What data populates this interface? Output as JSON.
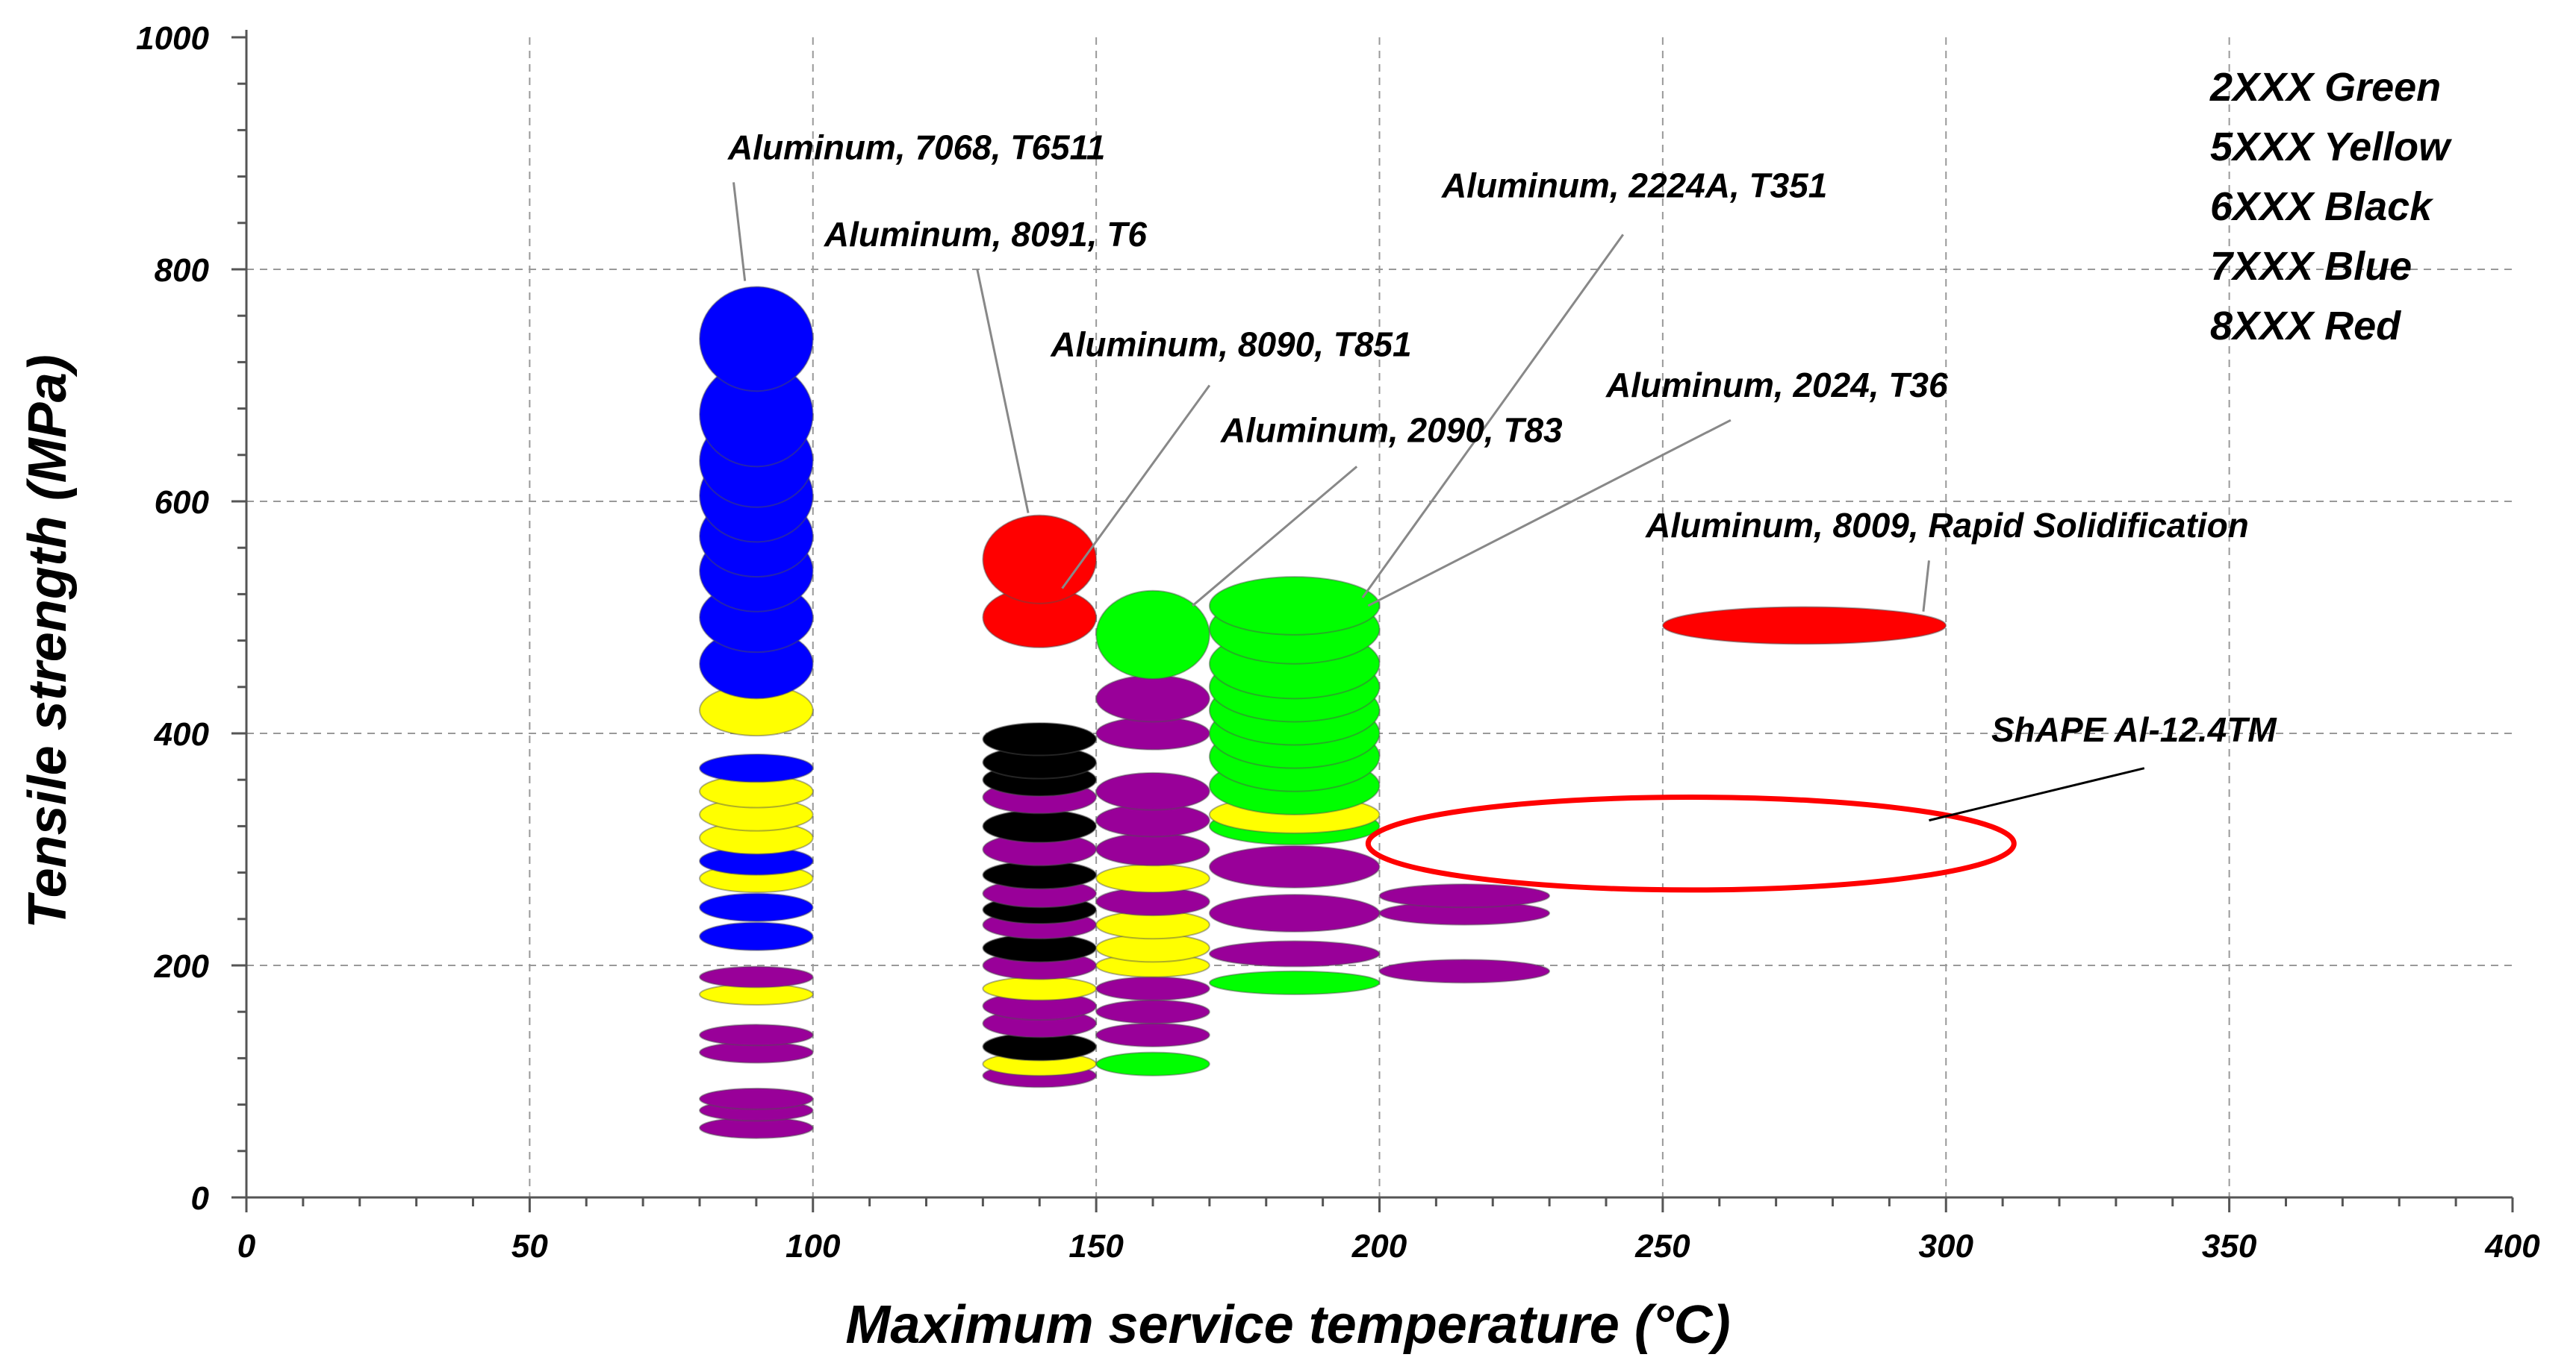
{
  "chart_data": {
    "type": "scatter",
    "title": "",
    "xlabel": "Maximum service temperature (°C)",
    "ylabel": "Tensile strength (MPa)",
    "xlim": [
      0,
      400
    ],
    "ylim": [
      0,
      1000
    ],
    "x_ticks": [
      "0",
      "50",
      "100",
      "150",
      "200",
      "250",
      "300",
      "350",
      "400"
    ],
    "y_ticks": [
      "0",
      "200",
      "400",
      "600",
      "800",
      "1000"
    ],
    "grid": true,
    "legend": {
      "placement": "top-right",
      "entries": [
        "2XXX Green",
        "5XXX Yellow",
        "6XXX Black",
        "7XXX Blue",
        "8XXX Red"
      ]
    },
    "colors": {
      "green": "#00ff00",
      "yellow": "#ffff00",
      "black": "#000000",
      "blue": "#0000ff",
      "red": "#ff0000",
      "purple": "#990099",
      "outline_red": "#ff0000"
    },
    "bubbles": [
      {
        "x": 90,
        "y": 60,
        "dx": 10,
        "dy": 9,
        "color": "purple"
      },
      {
        "x": 90,
        "y": 75,
        "dx": 10,
        "dy": 9,
        "color": "purple"
      },
      {
        "x": 90,
        "y": 85,
        "dx": 10,
        "dy": 9,
        "color": "purple"
      },
      {
        "x": 90,
        "y": 125,
        "dx": 10,
        "dy": 9,
        "color": "purple"
      },
      {
        "x": 90,
        "y": 140,
        "dx": 10,
        "dy": 9,
        "color": "purple"
      },
      {
        "x": 90,
        "y": 175,
        "dx": 10,
        "dy": 9,
        "color": "yellow"
      },
      {
        "x": 90,
        "y": 190,
        "dx": 10,
        "dy": 9,
        "color": "purple"
      },
      {
        "x": 90,
        "y": 225,
        "dx": 10,
        "dy": 12,
        "color": "blue"
      },
      {
        "x": 90,
        "y": 250,
        "dx": 10,
        "dy": 12,
        "color": "blue"
      },
      {
        "x": 90,
        "y": 275,
        "dx": 10,
        "dy": 12,
        "color": "yellow"
      },
      {
        "x": 90,
        "y": 290,
        "dx": 10,
        "dy": 12,
        "color": "blue"
      },
      {
        "x": 90,
        "y": 310,
        "dx": 10,
        "dy": 14,
        "color": "yellow"
      },
      {
        "x": 90,
        "y": 330,
        "dx": 10,
        "dy": 14,
        "color": "yellow"
      },
      {
        "x": 90,
        "y": 350,
        "dx": 10,
        "dy": 14,
        "color": "yellow"
      },
      {
        "x": 90,
        "y": 370,
        "dx": 10,
        "dy": 12,
        "color": "blue"
      },
      {
        "x": 90,
        "y": 420,
        "dx": 10,
        "dy": 22,
        "color": "yellow"
      },
      {
        "x": 90,
        "y": 460,
        "dx": 10,
        "dy": 30,
        "color": "blue"
      },
      {
        "x": 90,
        "y": 500,
        "dx": 10,
        "dy": 30,
        "color": "blue"
      },
      {
        "x": 90,
        "y": 540,
        "dx": 10,
        "dy": 35,
        "color": "blue"
      },
      {
        "x": 90,
        "y": 570,
        "dx": 10,
        "dy": 35,
        "color": "blue"
      },
      {
        "x": 90,
        "y": 605,
        "dx": 10,
        "dy": 40,
        "color": "blue"
      },
      {
        "x": 90,
        "y": 635,
        "dx": 10,
        "dy": 40,
        "color": "blue"
      },
      {
        "x": 90,
        "y": 675,
        "dx": 10,
        "dy": 45,
        "color": "blue"
      },
      {
        "x": 90,
        "y": 740,
        "dx": 10,
        "dy": 45,
        "color": "blue"
      },
      {
        "x": 140,
        "y": 105,
        "dx": 10,
        "dy": 10,
        "color": "purple"
      },
      {
        "x": 140,
        "y": 115,
        "dx": 10,
        "dy": 10,
        "color": "yellow"
      },
      {
        "x": 140,
        "y": 130,
        "dx": 10,
        "dy": 12,
        "color": "black"
      },
      {
        "x": 140,
        "y": 150,
        "dx": 10,
        "dy": 12,
        "color": "purple"
      },
      {
        "x": 140,
        "y": 165,
        "dx": 10,
        "dy": 12,
        "color": "purple"
      },
      {
        "x": 140,
        "y": 180,
        "dx": 10,
        "dy": 10,
        "color": "yellow"
      },
      {
        "x": 140,
        "y": 200,
        "dx": 10,
        "dy": 12,
        "color": "purple"
      },
      {
        "x": 140,
        "y": 215,
        "dx": 10,
        "dy": 12,
        "color": "black"
      },
      {
        "x": 140,
        "y": 235,
        "dx": 10,
        "dy": 12,
        "color": "purple"
      },
      {
        "x": 140,
        "y": 248,
        "dx": 10,
        "dy": 12,
        "color": "black"
      },
      {
        "x": 140,
        "y": 262,
        "dx": 10,
        "dy": 12,
        "color": "purple"
      },
      {
        "x": 140,
        "y": 278,
        "dx": 10,
        "dy": 12,
        "color": "black"
      },
      {
        "x": 140,
        "y": 300,
        "dx": 10,
        "dy": 14,
        "color": "purple"
      },
      {
        "x": 140,
        "y": 320,
        "dx": 10,
        "dy": 14,
        "color": "black"
      },
      {
        "x": 140,
        "y": 345,
        "dx": 10,
        "dy": 14,
        "color": "purple"
      },
      {
        "x": 140,
        "y": 360,
        "dx": 10,
        "dy": 14,
        "color": "black"
      },
      {
        "x": 140,
        "y": 375,
        "dx": 10,
        "dy": 14,
        "color": "black"
      },
      {
        "x": 140,
        "y": 395,
        "dx": 10,
        "dy": 14,
        "color": "black"
      },
      {
        "x": 140,
        "y": 500,
        "dx": 10,
        "dy": 26,
        "color": "red"
      },
      {
        "x": 140,
        "y": 550,
        "dx": 10,
        "dy": 38,
        "color": "red"
      },
      {
        "x": 160,
        "y": 115,
        "dx": 10,
        "dy": 10,
        "color": "green"
      },
      {
        "x": 160,
        "y": 140,
        "dx": 10,
        "dy": 10,
        "color": "purple"
      },
      {
        "x": 160,
        "y": 160,
        "dx": 10,
        "dy": 10,
        "color": "purple"
      },
      {
        "x": 160,
        "y": 180,
        "dx": 10,
        "dy": 10,
        "color": "purple"
      },
      {
        "x": 160,
        "y": 200,
        "dx": 10,
        "dy": 10,
        "color": "yellow"
      },
      {
        "x": 160,
        "y": 215,
        "dx": 10,
        "dy": 12,
        "color": "yellow"
      },
      {
        "x": 160,
        "y": 235,
        "dx": 10,
        "dy": 12,
        "color": "yellow"
      },
      {
        "x": 160,
        "y": 255,
        "dx": 10,
        "dy": 12,
        "color": "purple"
      },
      {
        "x": 160,
        "y": 275,
        "dx": 10,
        "dy": 12,
        "color": "yellow"
      },
      {
        "x": 160,
        "y": 300,
        "dx": 10,
        "dy": 14,
        "color": "purple"
      },
      {
        "x": 160,
        "y": 325,
        "dx": 10,
        "dy": 14,
        "color": "purple"
      },
      {
        "x": 160,
        "y": 350,
        "dx": 10,
        "dy": 16,
        "color": "purple"
      },
      {
        "x": 160,
        "y": 400,
        "dx": 10,
        "dy": 14,
        "color": "purple"
      },
      {
        "x": 160,
        "y": 430,
        "dx": 10,
        "dy": 20,
        "color": "purple"
      },
      {
        "x": 160,
        "y": 485,
        "dx": 10,
        "dy": 38,
        "color": "green"
      },
      {
        "x": 185,
        "y": 185,
        "dx": 15,
        "dy": 10,
        "color": "green"
      },
      {
        "x": 185,
        "y": 210,
        "dx": 15,
        "dy": 11,
        "color": "purple"
      },
      {
        "x": 185,
        "y": 245,
        "dx": 15,
        "dy": 16,
        "color": "purple"
      },
      {
        "x": 185,
        "y": 285,
        "dx": 15,
        "dy": 18,
        "color": "purple"
      },
      {
        "x": 185,
        "y": 320,
        "dx": 15,
        "dy": 16,
        "color": "green"
      },
      {
        "x": 185,
        "y": 330,
        "dx": 15,
        "dy": 16,
        "color": "yellow"
      },
      {
        "x": 185,
        "y": 355,
        "dx": 15,
        "dy": 25,
        "color": "green"
      },
      {
        "x": 185,
        "y": 380,
        "dx": 15,
        "dy": 30,
        "color": "green"
      },
      {
        "x": 185,
        "y": 400,
        "dx": 15,
        "dy": 30,
        "color": "green"
      },
      {
        "x": 185,
        "y": 420,
        "dx": 15,
        "dy": 30,
        "color": "green"
      },
      {
        "x": 185,
        "y": 440,
        "dx": 15,
        "dy": 30,
        "color": "green"
      },
      {
        "x": 185,
        "y": 460,
        "dx": 15,
        "dy": 30,
        "color": "green"
      },
      {
        "x": 185,
        "y": 490,
        "dx": 15,
        "dy": 30,
        "color": "green"
      },
      {
        "x": 185,
        "y": 510,
        "dx": 15,
        "dy": 25,
        "color": "green"
      },
      {
        "x": 215,
        "y": 195,
        "dx": 15,
        "dy": 10,
        "color": "purple"
      },
      {
        "x": 215,
        "y": 245,
        "dx": 15,
        "dy": 10,
        "color": "purple"
      },
      {
        "x": 215,
        "y": 260,
        "dx": 15,
        "dy": 10,
        "color": "purple"
      },
      {
        "x": 275,
        "y": 493,
        "dx": 25,
        "dy": 16,
        "color": "red"
      }
    ],
    "outline_ellipses": [
      {
        "label": "ShAPE Al-12.4TM",
        "x": 255,
        "y": 305,
        "dx": 57,
        "dy": 40,
        "color": "outline_red"
      }
    ],
    "annotations": [
      {
        "text": "Aluminum, 7068, T6511",
        "text_x": 85,
        "text_y": 895,
        "line_x1": 86,
        "line_y1": 875,
        "line_x2": 88,
        "line_y2": 790
      },
      {
        "text": "Aluminum, 8091, T6",
        "text_x": 102,
        "text_y": 820,
        "line_x1": 129,
        "line_y1": 800,
        "line_x2": 138,
        "line_y2": 590
      },
      {
        "text": "Aluminum, 2224A, T351",
        "text_x": 211,
        "text_y": 862,
        "line_x1": 243,
        "line_y1": 830,
        "line_x2": 197,
        "line_y2": 517
      },
      {
        "text": "Aluminum, 8090, T851",
        "text_x": 142,
        "text_y": 725,
        "line_x1": 170,
        "line_y1": 700,
        "line_x2": 144,
        "line_y2": 525
      },
      {
        "text": "Aluminum, 2024, T36",
        "text_x": 240,
        "text_y": 690,
        "line_x1": 262,
        "line_y1": 670,
        "line_x2": 198,
        "line_y2": 510
      },
      {
        "text": "Aluminum, 2090, T83",
        "text_x": 172,
        "text_y": 651,
        "line_x1": 196,
        "line_y1": 630,
        "line_x2": 167,
        "line_y2": 510
      },
      {
        "text": "Aluminum, 8009, Rapid Solidification",
        "text_x": 247,
        "text_y": 569,
        "line_x1": 297,
        "line_y1": 549,
        "line_x2": 296,
        "line_y2": 505
      },
      {
        "text": "ShAPE Al-12.4TM",
        "text_x": 308,
        "text_y": 393,
        "line_x1": 335,
        "line_y1": 370,
        "line_x2": 297,
        "line_y2": 325
      }
    ]
  }
}
